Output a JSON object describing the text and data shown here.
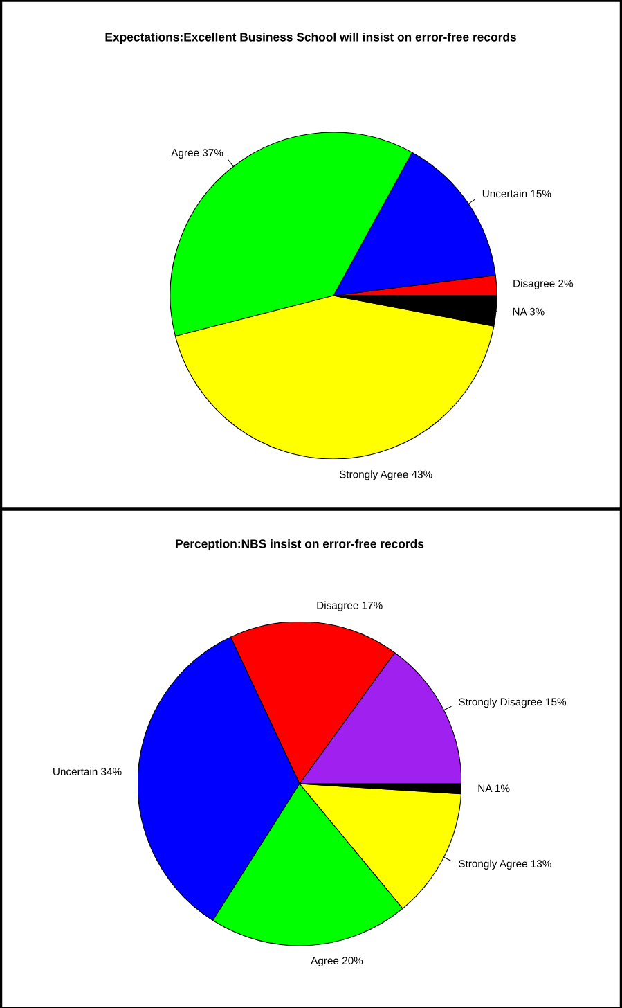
{
  "chart_data": [
    {
      "type": "pie",
      "title": "Expectations:Excellent Business School will insist on error-free records",
      "categories": [
        "Disagree",
        "Uncertain",
        "Agree",
        "Strongly Agree",
        "NA"
      ],
      "values": [
        2,
        15,
        37,
        43,
        3
      ],
      "value_labels": [
        "2%",
        "15%",
        "37%",
        "43%",
        "3%"
      ],
      "colors": [
        "#ff0000",
        "#0000ff",
        "#00ff00",
        "#ffff00",
        "#000000"
      ]
    },
    {
      "type": "pie",
      "title": "Perception:NBS insist on error-free records",
      "categories": [
        "Strongly Disagree",
        "Disagree",
        "Uncertain",
        "Agree",
        "Strongly Agree",
        "NA"
      ],
      "values": [
        15,
        17,
        34,
        20,
        13,
        1
      ],
      "value_labels": [
        "15%",
        "17%",
        "34%",
        "20%",
        "13%",
        "1%"
      ],
      "colors": [
        "#a020f0",
        "#ff0000",
        "#0000ff",
        "#00ff00",
        "#ffff00",
        "#000000"
      ]
    }
  ]
}
